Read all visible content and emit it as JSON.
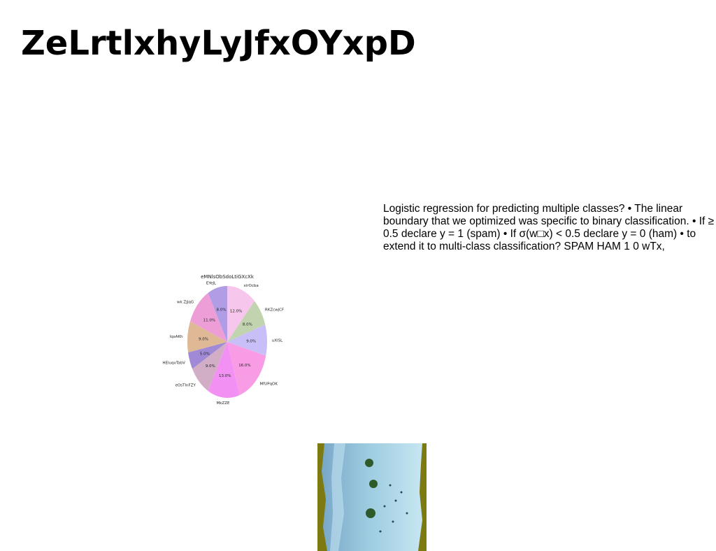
{
  "slide": {
    "title": "ZeLrtlxhyLyJfxOYxpD",
    "body": "Logistic regression for predicting multiple classes? • The linear boundary that we optimized was specific to binary classification. • If ≥ 0.5 declare y = 1 (spam) • If σ(w□x) < 0.5 declare y = 0 (ham) • to extend it to multi-class classification? SPAM HAM 1 0 wTx,"
  },
  "chart_data": {
    "type": "pie",
    "title": "eMNlsObSdoLtiGXcXk",
    "categories": [
      "xirOcba",
      "RKZcwjCF",
      "uXlSL",
      "MfUPqOK",
      "MkZZE",
      "eOsTlnFZY",
      "HEIuqvTabV",
      "lqsAKh",
      "wk ZJjqG",
      "EYeJL"
    ],
    "values": [
      12.0,
      8.0,
      9.0,
      16.0,
      13.0,
      9.0,
      5.0,
      9.0,
      11.0,
      8.0
    ],
    "value_labels": [
      "12.0%",
      "8.0%",
      "9.0%",
      "16.0%",
      "13.0%",
      "9.0%",
      "5.0%",
      "9.0%",
      "11.0%",
      "8.0%"
    ],
    "colors": [
      "#f6c6ec",
      "#c2d3b0",
      "#c9bff8",
      "#f99ce6",
      "#f291f3",
      "#d2aec6",
      "#a08ad6",
      "#dfb896",
      "#ee9ed7",
      "#b19ce6"
    ],
    "start_angle": 90,
    "direction": "clockwise",
    "legend": "none"
  },
  "photo": {
    "icon": "aerial-beach-photo"
  }
}
